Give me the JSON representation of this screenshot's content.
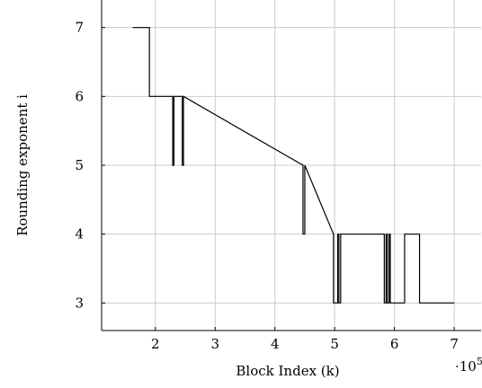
{
  "chart_data": {
    "type": "line",
    "step": true,
    "xlabel": "Block Index (k)",
    "ylabel": "Rounding exponent i",
    "xlim": [
      1.1,
      7.45
    ],
    "ylim": [
      2.6,
      7.4
    ],
    "x_multiplier": "·10^5",
    "x_multiplier_text": "·10",
    "x_multiplier_exp": "5",
    "grid": true,
    "xticks": [
      2,
      3,
      4,
      5,
      6,
      7
    ],
    "yticks": [
      3,
      4,
      5,
      6,
      7
    ],
    "series": [
      {
        "color": "#000000",
        "x": [
          1.62,
          1.9,
          1.9,
          2.29,
          2.29,
          2.31,
          2.31,
          2.45,
          2.45,
          2.47,
          2.47,
          4.47,
          4.47,
          4.5,
          4.5,
          4.98,
          4.98,
          5.05,
          5.05,
          5.07,
          5.07,
          5.1,
          5.1,
          5.83,
          5.83,
          5.86,
          5.86,
          5.88,
          5.88,
          5.91,
          5.91,
          5.93,
          5.93,
          6.17,
          6.17,
          6.19,
          6.19,
          6.42,
          6.42,
          7.0
        ],
        "y": [
          7,
          7,
          6,
          6,
          5,
          5,
          6,
          6,
          5,
          5,
          6,
          5,
          4,
          4,
          5,
          4,
          3,
          3,
          4,
          4,
          3,
          3,
          4,
          4,
          3,
          3,
          4,
          4,
          3,
          3,
          4,
          4,
          3,
          3,
          4,
          4,
          4,
          4,
          3,
          3
        ]
      }
    ]
  }
}
